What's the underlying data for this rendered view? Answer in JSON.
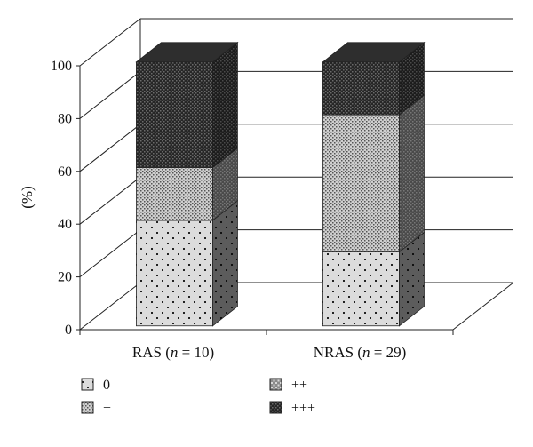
{
  "chart_data": {
    "type": "bar",
    "stacked": true,
    "three_d": true,
    "ylabel": "(%)",
    "ylim": [
      0,
      100
    ],
    "yticks": [
      0,
      20,
      40,
      60,
      80,
      100
    ],
    "grid": true,
    "legend_position": "bottom",
    "categories": [
      {
        "prefix": "RAS (",
        "n_symbol": "n",
        "suffix": " = 10)"
      },
      {
        "prefix": "NRAS (",
        "n_symbol": "n",
        "suffix": " = 29)"
      }
    ],
    "series": [
      {
        "name": "0",
        "values": [
          40,
          28
        ],
        "color": "#d9d9d9",
        "side_color": "#5f5f5f",
        "top_color": "#bcbcbc",
        "pattern": "sparse-dots"
      },
      {
        "name": "+",
        "values": [
          20,
          52
        ],
        "color": "#c8c8c8",
        "side_color": "#505050",
        "top_color": "#a8a8a8",
        "pattern": "dense-dots"
      },
      {
        "name": "++",
        "values": [
          0,
          0
        ],
        "color": "#9a9a9a",
        "side_color": "#3a3a3a",
        "top_color": "#707070",
        "pattern": "medium-dots"
      },
      {
        "name": "+++",
        "values": [
          40,
          20
        ],
        "color": "#3a3a3a",
        "side_color": "#222222",
        "top_color": "#2e2e2e",
        "pattern": "dark-dots"
      }
    ],
    "legend_order": [
      "0",
      "++",
      "+",
      "+++"
    ]
  }
}
